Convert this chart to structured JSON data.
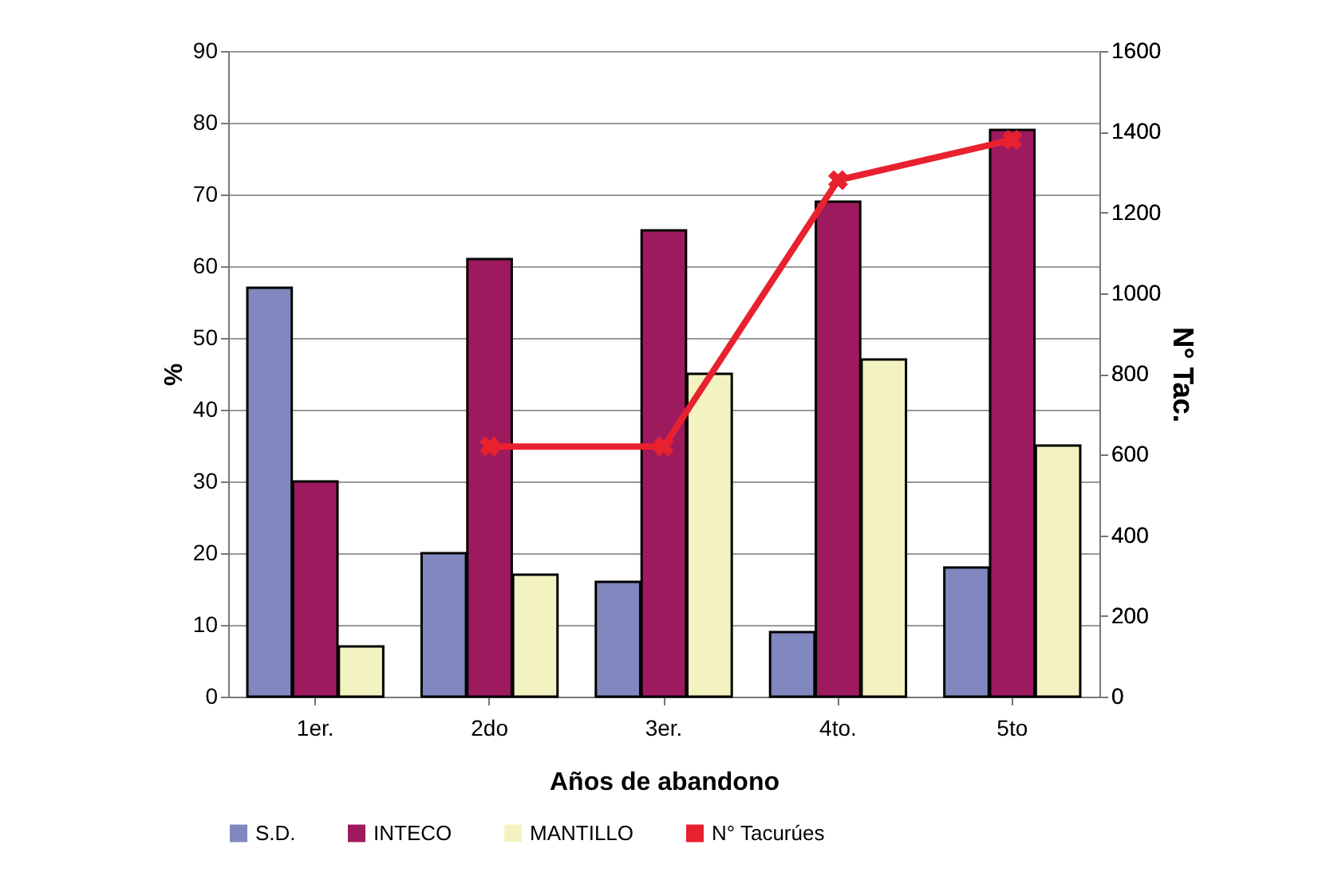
{
  "chart_data": {
    "type": "bar",
    "xlabel": "Años de abandono",
    "ylabel": "%",
    "y2label": "N° Tac.",
    "categories": [
      "1er.",
      "2do",
      "3er.",
      "4to.",
      "5to"
    ],
    "series": [
      {
        "name": "S.D.",
        "color": "#8088bf",
        "values": [
          57,
          20,
          16,
          9,
          18
        ]
      },
      {
        "name": "INTECO",
        "color": "#9e1a5f",
        "values": [
          30,
          61,
          65,
          69,
          79
        ]
      },
      {
        "name": "MANTILLO",
        "color": "#f3f3c2",
        "values": [
          7,
          17,
          45,
          47,
          35
        ]
      },
      {
        "name": "N° Tacurúes",
        "color": "#e8212f",
        "type": "line",
        "axis": "y2",
        "marker": "cross",
        "values": [
          null,
          620,
          620,
          1280,
          1380
        ]
      }
    ],
    "ylim": [
      0,
      90
    ],
    "yticks": [
      0,
      10,
      20,
      30,
      40,
      50,
      60,
      70,
      80,
      90
    ],
    "y2lim": [
      0,
      1600
    ],
    "y2ticks": [
      0,
      200,
      400,
      600,
      800,
      1000,
      1200,
      1400,
      1600
    ],
    "grid": "y",
    "legend": "bottom"
  }
}
